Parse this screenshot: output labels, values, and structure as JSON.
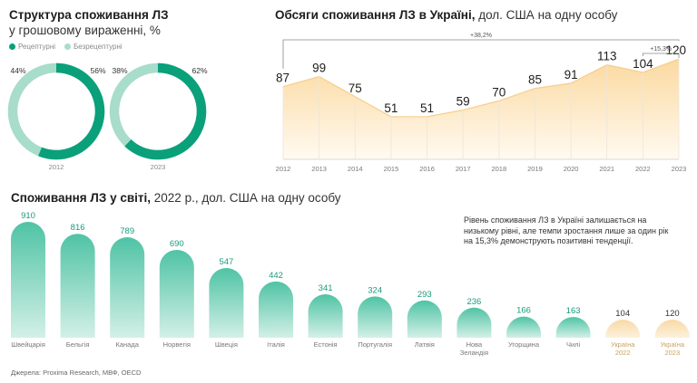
{
  "donut_section": {
    "title_bold": "Структура споживання ЛЗ",
    "title_sub": "у грошовому вираженні, %",
    "legend": [
      {
        "label": "Рецептурні",
        "color": "#0aa07a"
      },
      {
        "label": "Безрецептурні",
        "color": "#a8dccb"
      }
    ]
  },
  "line_section": {
    "title_bold": "Обсяги споживання ЛЗ в Україні,",
    "title_light": " дол. США на одну особу",
    "annotation_long": "+38,2%",
    "annotation_short": "+15,3%"
  },
  "bar_section": {
    "title_bold": "Споживання ЛЗ у світі,",
    "title_light": " 2022 р., дол. США на одну особу"
  },
  "note": "Рівень споживання ЛЗ в Україні залишається на низькому рівні, але темпи зростання лише за один рік на 15,3% демонструють позитивні тенденції.",
  "source": "Джерела: Proxima Research, МВФ, OECD",
  "chart_data": [
    {
      "type": "pie",
      "variant": "donut",
      "title": "Структура споживання ЛЗ у грошовому вираженні, %",
      "charts": [
        {
          "year": "2012",
          "slices": [
            {
              "name": "Рецептурні",
              "value": 56
            },
            {
              "name": "Безрецептурні",
              "value": 44
            }
          ],
          "labels": [
            "44%",
            "56%"
          ]
        },
        {
          "year": "2023",
          "slices": [
            {
              "name": "Рецептурні",
              "value": 62
            },
            {
              "name": "Безрецептурні",
              "value": 38
            }
          ],
          "labels": [
            "38%",
            "62%"
          ]
        }
      ]
    },
    {
      "type": "area",
      "title": "Обсяги споживання ЛЗ в Україні, дол. США на одну особу",
      "x": [
        "2012",
        "2013",
        "2014",
        "2015",
        "2016",
        "2017",
        "2018",
        "2019",
        "2020",
        "2021",
        "2022",
        "2023"
      ],
      "values": [
        87,
        99,
        75,
        51,
        51,
        59,
        70,
        85,
        91,
        113,
        104,
        120
      ],
      "ylim": [
        0,
        130
      ]
    },
    {
      "type": "bar",
      "title": "Споживання ЛЗ у світі, 2022 р., дол. США на одну особу",
      "categories": [
        [
          "Швейцарія"
        ],
        [
          "Бельгія"
        ],
        [
          "Канада"
        ],
        [
          "Норвегія"
        ],
        [
          "Швеція"
        ],
        [
          "Італія"
        ],
        [
          "Естонія"
        ],
        [
          "Португалія"
        ],
        [
          "Латвія"
        ],
        [
          "Нова",
          "Зеландія"
        ],
        [
          "Угорщина"
        ],
        [
          "Чилі"
        ],
        [
          "Україна",
          "2022"
        ],
        [
          "Україна",
          "2023"
        ]
      ],
      "values": [
        910,
        816,
        789,
        690,
        547,
        442,
        341,
        324,
        293,
        236,
        166,
        163,
        104,
        120
      ],
      "highlight": [
        12,
        13
      ],
      "colors": {
        "bar_top": "#4fc3a5",
        "bar_bottom": "#d3f0e6",
        "ukraine_top": "#f8d9a6",
        "ukraine_bottom": "#fdf1dc"
      }
    }
  ]
}
